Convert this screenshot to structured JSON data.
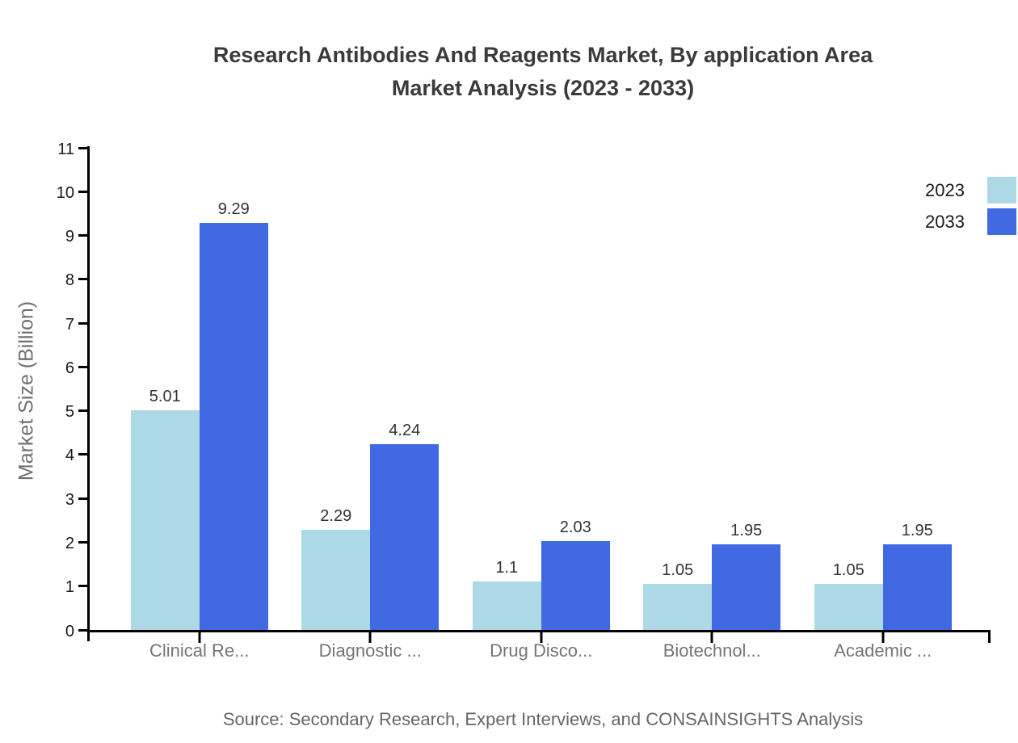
{
  "title": {
    "line1": "Research Antibodies And Reagents Market, By application Area",
    "line2": "Market Analysis (2023 - 2033)"
  },
  "source": "Source: Secondary Research, Expert Interviews, and CONSAINSIGHTS Analysis",
  "chart_data": {
    "type": "bar",
    "title": "Research Antibodies And Reagents Market, By application Area Market Analysis (2023 - 2033)",
    "categories": [
      "Clinical Re...",
      "Diagnostic ...",
      "Drug Disco...",
      "Biotechnol...",
      "Academic ..."
    ],
    "series": [
      {
        "name": "2023",
        "color": "#ADD8E6",
        "values": [
          5.01,
          2.29,
          1.1,
          1.05,
          1.05
        ]
      },
      {
        "name": "2033",
        "color": "#4169E1",
        "values": [
          9.29,
          4.24,
          2.03,
          1.95,
          1.95
        ]
      }
    ],
    "xlabel": "",
    "ylabel": "Market Size (Billion)",
    "ylim": [
      0,
      11
    ],
    "yticks": [
      0,
      1,
      2,
      3,
      4,
      5,
      6,
      7,
      8,
      9,
      10,
      11
    ],
    "grid": false,
    "legend_position": "top-right",
    "axis_color": "#000000",
    "category_label_color": "#757575",
    "value_label_color": "#333333"
  }
}
